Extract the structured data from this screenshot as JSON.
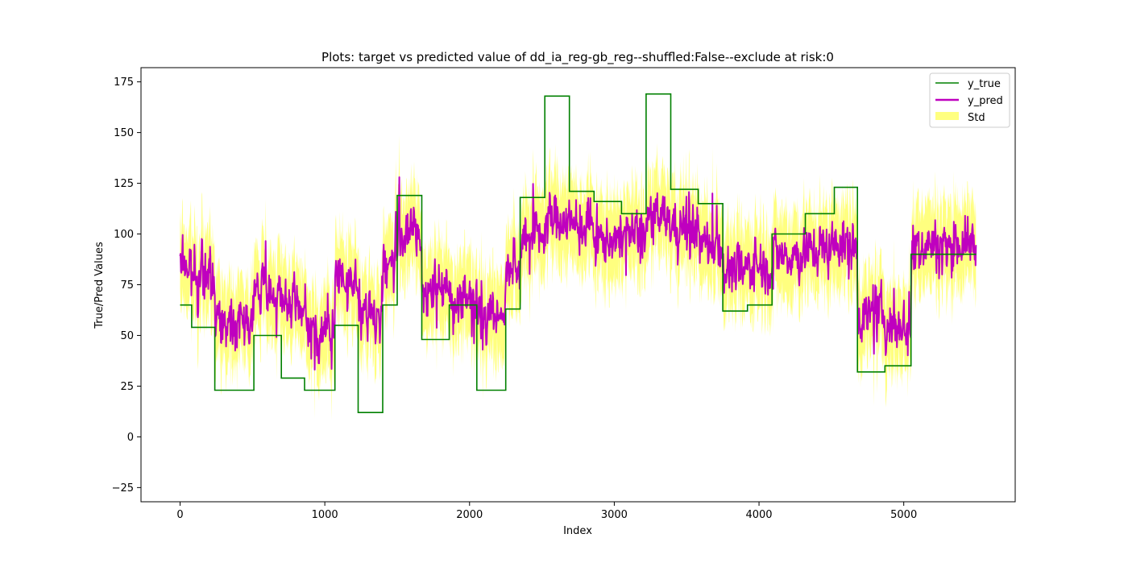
{
  "chart_data": {
    "type": "line",
    "title": "Plots: target vs predicted value of dd_ia_reg-gb_reg--shuffled:False--exclude at risk:0",
    "xlabel": "Index",
    "ylabel": "True/Pred Values",
    "xlim": [
      -270,
      5770
    ],
    "ylim": [
      -32,
      182
    ],
    "xticks": [
      0,
      1000,
      2000,
      3000,
      4000,
      5000
    ],
    "yticks": [
      -25,
      0,
      25,
      50,
      75,
      100,
      125,
      150,
      175
    ],
    "grid": false,
    "legend_position": "top-right",
    "n_points": 5500,
    "series": [
      {
        "name": "y_true",
        "kind": "step",
        "color": "#008000",
        "segments": [
          {
            "x0": 0,
            "x1": 80,
            "y": 65
          },
          {
            "x0": 80,
            "x1": 240,
            "y": 54
          },
          {
            "x0": 240,
            "x1": 510,
            "y": 23
          },
          {
            "x0": 510,
            "x1": 700,
            "y": 50
          },
          {
            "x0": 700,
            "x1": 860,
            "y": 29
          },
          {
            "x0": 860,
            "x1": 1070,
            "y": 23
          },
          {
            "x0": 1070,
            "x1": 1230,
            "y": 55
          },
          {
            "x0": 1230,
            "x1": 1400,
            "y": 12
          },
          {
            "x0": 1400,
            "x1": 1500,
            "y": 65
          },
          {
            "x0": 1500,
            "x1": 1670,
            "y": 119
          },
          {
            "x0": 1670,
            "x1": 1860,
            "y": 48
          },
          {
            "x0": 1860,
            "x1": 2050,
            "y": 65
          },
          {
            "x0": 2050,
            "x1": 2250,
            "y": 23
          },
          {
            "x0": 2250,
            "x1": 2350,
            "y": 63
          },
          {
            "x0": 2350,
            "x1": 2520,
            "y": 118
          },
          {
            "x0": 2520,
            "x1": 2690,
            "y": 168
          },
          {
            "x0": 2690,
            "x1": 2860,
            "y": 121
          },
          {
            "x0": 2860,
            "x1": 3050,
            "y": 116
          },
          {
            "x0": 3050,
            "x1": 3220,
            "y": 110
          },
          {
            "x0": 3220,
            "x1": 3390,
            "y": 169
          },
          {
            "x0": 3390,
            "x1": 3580,
            "y": 122
          },
          {
            "x0": 3580,
            "x1": 3750,
            "y": 115
          },
          {
            "x0": 3750,
            "x1": 3920,
            "y": 62
          },
          {
            "x0": 3920,
            "x1": 4090,
            "y": 65
          },
          {
            "x0": 4090,
            "x1": 4320,
            "y": 100
          },
          {
            "x0": 4320,
            "x1": 4520,
            "y": 110
          },
          {
            "x0": 4520,
            "x1": 4680,
            "y": 123
          },
          {
            "x0": 4680,
            "x1": 4870,
            "y": 32
          },
          {
            "x0": 4870,
            "x1": 5050,
            "y": 35
          },
          {
            "x0": 5050,
            "x1": 5500,
            "y": 90
          }
        ]
      },
      {
        "name": "y_pred",
        "kind": "noisy-line",
        "color": "#bf00bf",
        "noise_amplitude": 16,
        "seed": 7,
        "segment_means": [
          {
            "x0": 0,
            "x1": 80,
            "mean": 85
          },
          {
            "x0": 80,
            "x1": 240,
            "mean": 78
          },
          {
            "x0": 240,
            "x1": 510,
            "mean": 58
          },
          {
            "x0": 510,
            "x1": 700,
            "mean": 72
          },
          {
            "x0": 700,
            "x1": 860,
            "mean": 64
          },
          {
            "x0": 860,
            "x1": 1070,
            "mean": 52
          },
          {
            "x0": 1070,
            "x1": 1230,
            "mean": 78
          },
          {
            "x0": 1230,
            "x1": 1400,
            "mean": 60
          },
          {
            "x0": 1400,
            "x1": 1500,
            "mean": 85
          },
          {
            "x0": 1500,
            "x1": 1670,
            "mean": 100
          },
          {
            "x0": 1670,
            "x1": 1860,
            "mean": 72
          },
          {
            "x0": 1860,
            "x1": 2050,
            "mean": 70
          },
          {
            "x0": 2050,
            "x1": 2250,
            "mean": 60
          },
          {
            "x0": 2250,
            "x1": 2350,
            "mean": 82
          },
          {
            "x0": 2350,
            "x1": 2520,
            "mean": 100
          },
          {
            "x0": 2520,
            "x1": 2690,
            "mean": 108
          },
          {
            "x0": 2690,
            "x1": 2860,
            "mean": 103
          },
          {
            "x0": 2860,
            "x1": 3050,
            "mean": 97
          },
          {
            "x0": 3050,
            "x1": 3220,
            "mean": 100
          },
          {
            "x0": 3220,
            "x1": 3390,
            "mean": 107
          },
          {
            "x0": 3390,
            "x1": 3580,
            "mean": 104
          },
          {
            "x0": 3580,
            "x1": 3750,
            "mean": 95
          },
          {
            "x0": 3750,
            "x1": 3920,
            "mean": 82
          },
          {
            "x0": 3920,
            "x1": 4090,
            "mean": 85
          },
          {
            "x0": 4090,
            "x1": 4320,
            "mean": 90
          },
          {
            "x0": 4320,
            "x1": 4520,
            "mean": 93
          },
          {
            "x0": 4520,
            "x1": 4680,
            "mean": 95
          },
          {
            "x0": 4680,
            "x1": 4870,
            "mean": 60
          },
          {
            "x0": 4870,
            "x1": 5050,
            "mean": 55
          },
          {
            "x0": 5050,
            "x1": 5500,
            "mean": 95
          }
        ]
      },
      {
        "name": "Std",
        "kind": "band",
        "color": "#ffff00",
        "opacity": 0.5,
        "half_width": 14
      }
    ]
  }
}
